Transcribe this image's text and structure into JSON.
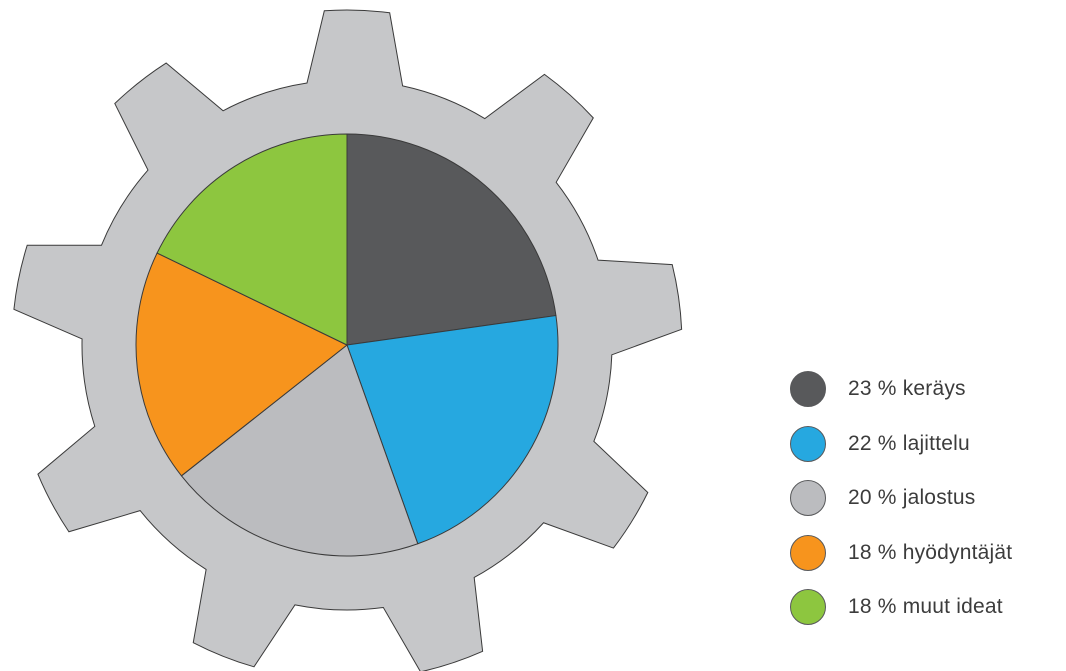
{
  "chart_data": {
    "type": "pie",
    "title": "",
    "slices": [
      {
        "label": "23 % keräys",
        "value": 23,
        "color": "#58595b"
      },
      {
        "label": "22 % lajittelu",
        "value": 22,
        "color": "#26a8e0"
      },
      {
        "label": "20 % jalostus",
        "value": 20,
        "color": "#bbbcbf"
      },
      {
        "label": "18 % hyödyntäjät",
        "value": 18,
        "color": "#f7941d"
      },
      {
        "label": "18 % muut ideat",
        "value": 18,
        "color": "#8dc63f"
      }
    ],
    "legend_position": "right",
    "start_angle": "12 o'clock",
    "direction": "clockwise"
  },
  "decoration": {
    "gear_color": "#c6c7c9",
    "gear_teeth": 9,
    "outline_color": "#3a3a3a"
  }
}
